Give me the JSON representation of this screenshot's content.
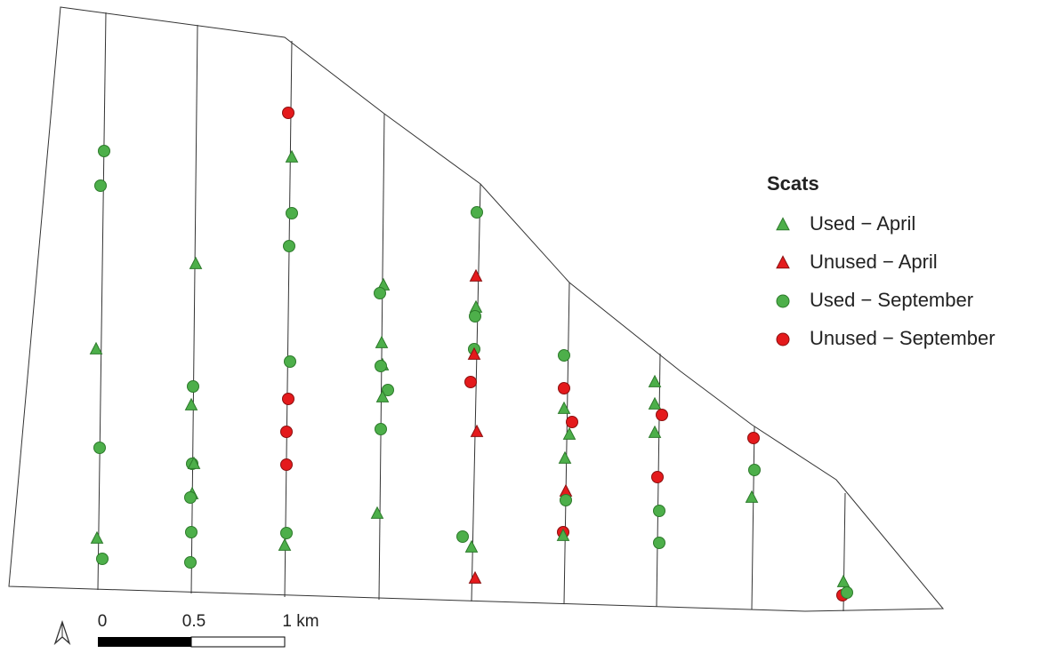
{
  "legend": {
    "title": "Scats",
    "items": [
      {
        "label": "Used − April",
        "shape": "triangle",
        "color": "#4daf4a"
      },
      {
        "label": "Unused − April",
        "shape": "triangle",
        "color": "#e41a1c"
      },
      {
        "label": "Used − September",
        "shape": "circle",
        "color": "#4daf4a"
      },
      {
        "label": "Unused − September",
        "shape": "circle",
        "color": "#e41a1c"
      }
    ]
  },
  "scale_bar": {
    "labels": [
      "0",
      "0.5",
      "1 km"
    ]
  }
}
